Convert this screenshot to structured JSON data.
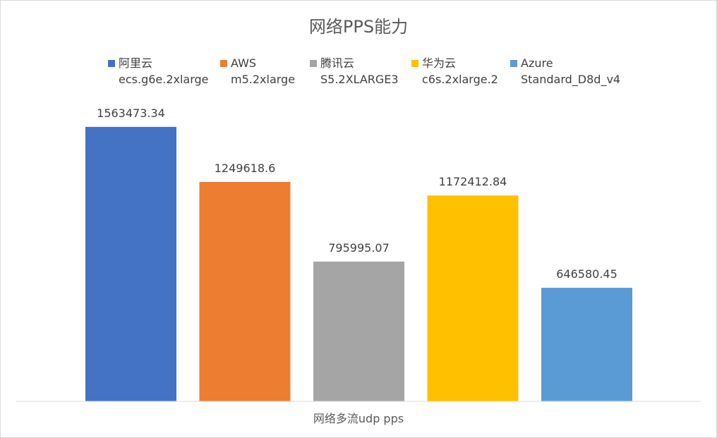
{
  "chart_data": {
    "type": "bar",
    "title": "网络PPS能力",
    "categories": [
      "网络多流udp pps"
    ],
    "series": [
      {
        "name": "阿里云 ecs.g6e.2xlarge",
        "name_lines": [
          "阿里云",
          "ecs.g6e.2xlarge"
        ],
        "values": [
          1563473.34
        ],
        "label": "1563473.34",
        "color": "#4472C4"
      },
      {
        "name": "AWS m5.2xlarge",
        "name_lines": [
          "AWS",
          "m5.2xlarge"
        ],
        "values": [
          1249618.6
        ],
        "label": "1249618.6",
        "color": "#ED7D31"
      },
      {
        "name": "腾讯云 S5.2XLARGE3",
        "name_lines": [
          "腾讯云",
          "S5.2XLARGE3"
        ],
        "values": [
          795995.07
        ],
        "label": "795995.07",
        "color": "#A5A5A5"
      },
      {
        "name": "华为云 c6s.2xlarge.2",
        "name_lines": [
          "华为云",
          "c6s.2xlarge.2"
        ],
        "values": [
          1172412.84
        ],
        "label": "1172412.84",
        "color": "#FFC000"
      },
      {
        "name": "Azure Standard_D8d_v4",
        "name_lines": [
          "Azure",
          "Standard_D8d_v4"
        ],
        "values": [
          646580.45
        ],
        "label": "646580.45",
        "color": "#5B9BD5"
      }
    ],
    "xlabel": "",
    "ylabel": "",
    "ylim": [
      0,
      1800000
    ],
    "grid": false,
    "legend": "top"
  }
}
